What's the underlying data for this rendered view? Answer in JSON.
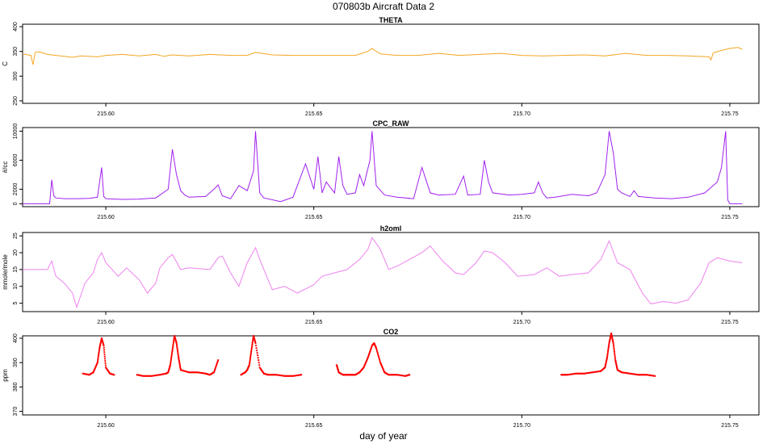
{
  "page": {
    "title": "070803b   Aircraft Data 2",
    "xlabel": "day of year"
  },
  "chart_data": [
    {
      "type": "line",
      "title": "THETA",
      "ylabel": "C",
      "color": "#f5a623",
      "xlim": [
        215.58,
        215.757
      ],
      "ylim": [
        245,
        405
      ],
      "yticks": [
        250,
        300,
        350,
        400
      ],
      "xticks": [
        215.6,
        215.65,
        215.7,
        215.75
      ],
      "series": [
        {
          "x": [
            215.58,
            215.582,
            215.5825,
            215.583,
            215.584,
            215.586,
            215.588,
            215.59,
            215.592,
            215.594,
            215.596,
            215.598,
            215.6,
            215.604,
            215.608,
            215.612,
            215.614,
            215.616,
            215.62,
            215.625,
            215.63,
            215.634,
            215.636,
            215.64,
            215.645,
            215.65,
            215.655,
            215.66,
            215.663,
            215.664,
            215.666,
            215.67,
            215.675,
            215.68,
            215.685,
            215.69,
            215.695,
            215.7,
            215.705,
            215.71,
            215.715,
            215.72,
            215.725,
            215.73,
            215.735,
            215.74,
            215.745,
            215.7455,
            215.746,
            215.748,
            215.75,
            215.752,
            215.753
          ],
          "y": [
            345,
            342,
            323,
            348,
            349,
            344,
            342,
            340,
            338,
            341,
            340,
            339,
            342,
            344,
            341,
            344,
            340,
            343,
            341,
            344,
            342,
            342,
            348,
            343,
            342,
            342,
            342,
            342,
            350,
            356,
            345,
            342,
            342,
            346,
            342,
            344,
            346,
            342,
            341,
            342,
            343,
            341,
            346,
            342,
            342,
            341,
            339,
            333,
            347,
            352,
            356,
            358,
            354
          ]
        }
      ]
    },
    {
      "type": "line",
      "title": "CPC_RAW",
      "ylabel": "#/cc",
      "color": "#a020f0",
      "xlim": [
        215.58,
        215.757
      ],
      "ylim": [
        -400,
        10500
      ],
      "yticks": [
        0,
        2000,
        6000,
        10000
      ],
      "xticks": [
        215.6,
        215.65,
        215.7,
        215.75
      ],
      "series": [
        {
          "x": [
            215.58,
            215.5865,
            215.587,
            215.5875,
            215.588,
            215.59,
            215.593,
            215.596,
            215.598,
            215.599,
            215.5995,
            215.6,
            215.604,
            215.608,
            215.612,
            215.615,
            215.616,
            215.617,
            215.618,
            215.619,
            215.62,
            215.624,
            215.626,
            215.627,
            215.628,
            215.63,
            215.632,
            215.634,
            215.6355,
            215.636,
            215.637,
            215.638,
            215.642,
            215.645,
            215.648,
            215.65,
            215.651,
            215.652,
            215.653,
            215.655,
            215.656,
            215.657,
            215.658,
            215.66,
            215.661,
            215.662,
            215.6635,
            215.664,
            215.665,
            215.667,
            215.67,
            215.674,
            215.676,
            215.678,
            215.68,
            215.684,
            215.686,
            215.687,
            215.69,
            215.691,
            215.692,
            215.693,
            215.697,
            215.7,
            215.703,
            215.704,
            215.705,
            215.706,
            215.708,
            215.712,
            215.716,
            215.718,
            215.72,
            215.721,
            215.722,
            215.723,
            215.724,
            215.726,
            215.727,
            215.728,
            215.732,
            215.736,
            215.74,
            215.744,
            215.746,
            215.747,
            215.748,
            215.749,
            215.7495,
            215.75,
            215.7505,
            215.753
          ],
          "y": [
            0,
            0,
            3300,
            1100,
            800,
            700,
            700,
            750,
            900,
            5000,
            1000,
            700,
            600,
            650,
            800,
            2000,
            7500,
            4000,
            1800,
            1200,
            900,
            1000,
            2000,
            2600,
            1100,
            700,
            2500,
            1800,
            4500,
            10000,
            1500,
            800,
            300,
            900,
            5500,
            2000,
            6500,
            1500,
            3000,
            1500,
            6500,
            2500,
            1300,
            1500,
            4000,
            2500,
            6000,
            10000,
            2500,
            1200,
            900,
            700,
            5000,
            1500,
            1200,
            1300,
            3800,
            1200,
            1300,
            6000,
            3000,
            1500,
            1200,
            1300,
            1500,
            3000,
            1500,
            800,
            900,
            1300,
            1100,
            1500,
            4000,
            10000,
            7000,
            2000,
            1500,
            1000,
            1800,
            1000,
            800,
            700,
            900,
            1500,
            2500,
            3000,
            5000,
            10000,
            500,
            0,
            0,
            0
          ]
        }
      ]
    },
    {
      "type": "line",
      "title": "h2oml",
      "ylabel": "mmole/mole",
      "color": "#ee82ee",
      "xlim": [
        215.58,
        215.757
      ],
      "ylim": [
        2.5,
        26
      ],
      "yticks": [
        5,
        10,
        15,
        20,
        25
      ],
      "xticks": [
        215.6,
        215.65,
        215.7,
        215.75
      ],
      "series": [
        {
          "x": [
            215.58,
            215.586,
            215.587,
            215.588,
            215.59,
            215.592,
            215.593,
            215.595,
            215.597,
            215.598,
            215.599,
            215.6,
            215.603,
            215.605,
            215.608,
            215.61,
            215.612,
            215.613,
            215.615,
            215.616,
            215.618,
            215.62,
            215.625,
            215.627,
            215.628,
            215.63,
            215.632,
            215.634,
            215.636,
            215.637,
            215.64,
            215.643,
            215.646,
            215.65,
            215.652,
            215.655,
            215.658,
            215.661,
            215.663,
            215.664,
            215.666,
            215.668,
            215.67,
            215.673,
            215.676,
            215.678,
            215.681,
            215.684,
            215.686,
            215.689,
            215.691,
            215.693,
            215.696,
            215.699,
            215.703,
            215.706,
            215.709,
            215.712,
            215.716,
            215.719,
            215.721,
            215.723,
            215.726,
            215.729,
            215.731,
            215.734,
            215.737,
            215.74,
            215.743,
            215.745,
            215.747,
            215.75,
            215.753
          ],
          "y": [
            15,
            15,
            17.5,
            13,
            11,
            8,
            3.8,
            11,
            14,
            18,
            20,
            17,
            13,
            15.5,
            12,
            8,
            11,
            15.5,
            18.5,
            19.5,
            15,
            15.5,
            15,
            18.5,
            19,
            14,
            10,
            17,
            21.5,
            18,
            9,
            10,
            8,
            10.5,
            13,
            14,
            15,
            18,
            21,
            24.5,
            21,
            15,
            16,
            18,
            20,
            22,
            17.5,
            14,
            13.5,
            17,
            20.5,
            20,
            17,
            13,
            13.5,
            15.5,
            13,
            13.5,
            14,
            18,
            23.5,
            17,
            15,
            8,
            4.8,
            5.5,
            5,
            6,
            11,
            17,
            18.5,
            17.5,
            17
          ]
        }
      ]
    },
    {
      "type": "scatter",
      "title": "CO2",
      "ylabel": "ppm",
      "color": "#ff0000",
      "xlim": [
        215.58,
        215.757
      ],
      "ylim": [
        368.5,
        401
      ],
      "yticks": [
        370,
        380,
        390,
        400
      ],
      "xticks": [
        215.6,
        215.65,
        215.7,
        215.75
      ],
      "series": [
        {
          "x": [
            215.5945,
            215.596,
            215.597,
            215.598,
            215.5985,
            215.599,
            215.5995,
            215.6,
            215.601,
            215.602
          ],
          "y": [
            385.5,
            385,
            386,
            390,
            396,
            400,
            397,
            388,
            385.5,
            385
          ]
        },
        {
          "x": [
            215.6075,
            215.609,
            215.611,
            215.613,
            215.6145,
            215.615,
            215.6155,
            215.616,
            215.6165,
            215.617,
            215.6175,
            215.618,
            215.62,
            215.622,
            215.624,
            215.625,
            215.626,
            215.627
          ],
          "y": [
            385,
            384.5,
            384.5,
            385,
            385.5,
            386,
            389,
            395,
            401,
            398,
            392,
            387,
            386,
            386,
            385.5,
            385,
            386,
            391
          ]
        },
        {
          "x": [
            215.6325,
            215.6335,
            215.634,
            215.6345,
            215.635,
            215.6355,
            215.636,
            215.637,
            215.638,
            215.639,
            215.641,
            215.643,
            215.645,
            215.647
          ],
          "y": [
            385,
            386,
            387,
            389,
            395,
            401,
            398,
            388,
            385.5,
            385,
            385,
            384.5,
            384.5,
            385
          ]
        },
        {
          "x": [
            215.6555,
            215.656,
            215.657,
            215.658,
            215.659,
            215.66,
            215.661,
            215.662,
            215.663,
            215.664,
            215.6645,
            215.665,
            215.666,
            215.667,
            215.668,
            215.67,
            215.672,
            215.673
          ],
          "y": [
            389,
            386,
            385,
            385,
            385,
            385,
            386,
            388,
            392,
            397,
            398,
            396,
            390,
            386,
            385,
            385,
            384.5,
            385
          ]
        },
        {
          "x": [
            215.7095,
            215.711,
            215.713,
            215.715,
            215.717,
            215.719,
            215.72,
            215.7205,
            215.721,
            215.7215,
            215.722,
            215.7225,
            215.723,
            215.724,
            215.726,
            215.728,
            215.73,
            215.732
          ],
          "y": [
            385,
            385,
            385.5,
            385.5,
            386,
            386.5,
            388,
            392,
            398,
            402,
            398,
            391,
            387,
            386,
            385.5,
            385,
            385,
            384.5
          ]
        }
      ]
    }
  ]
}
